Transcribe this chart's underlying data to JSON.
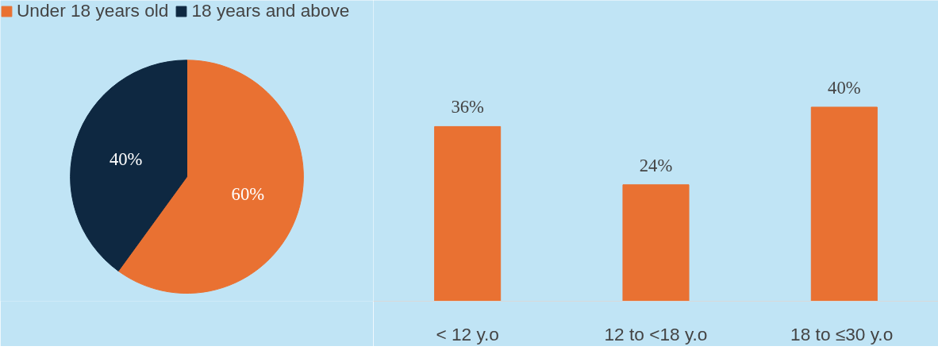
{
  "chart_data": [
    {
      "type": "pie",
      "categories": [
        "Under 18 years old",
        "18 years and above"
      ],
      "values": [
        60,
        40
      ],
      "value_labels": [
        "60%",
        "40%"
      ],
      "colors": [
        "#e97132",
        "#0e2841"
      ],
      "legend": "top left"
    },
    {
      "type": "bar",
      "categories": [
        "< 12 y.o",
        "12 to <18 y.o",
        "18 to ≤30  y.o"
      ],
      "values": [
        36,
        24,
        40
      ],
      "value_labels": [
        "36%",
        "24%",
        "40%"
      ],
      "color": "#e97132"
    }
  ]
}
